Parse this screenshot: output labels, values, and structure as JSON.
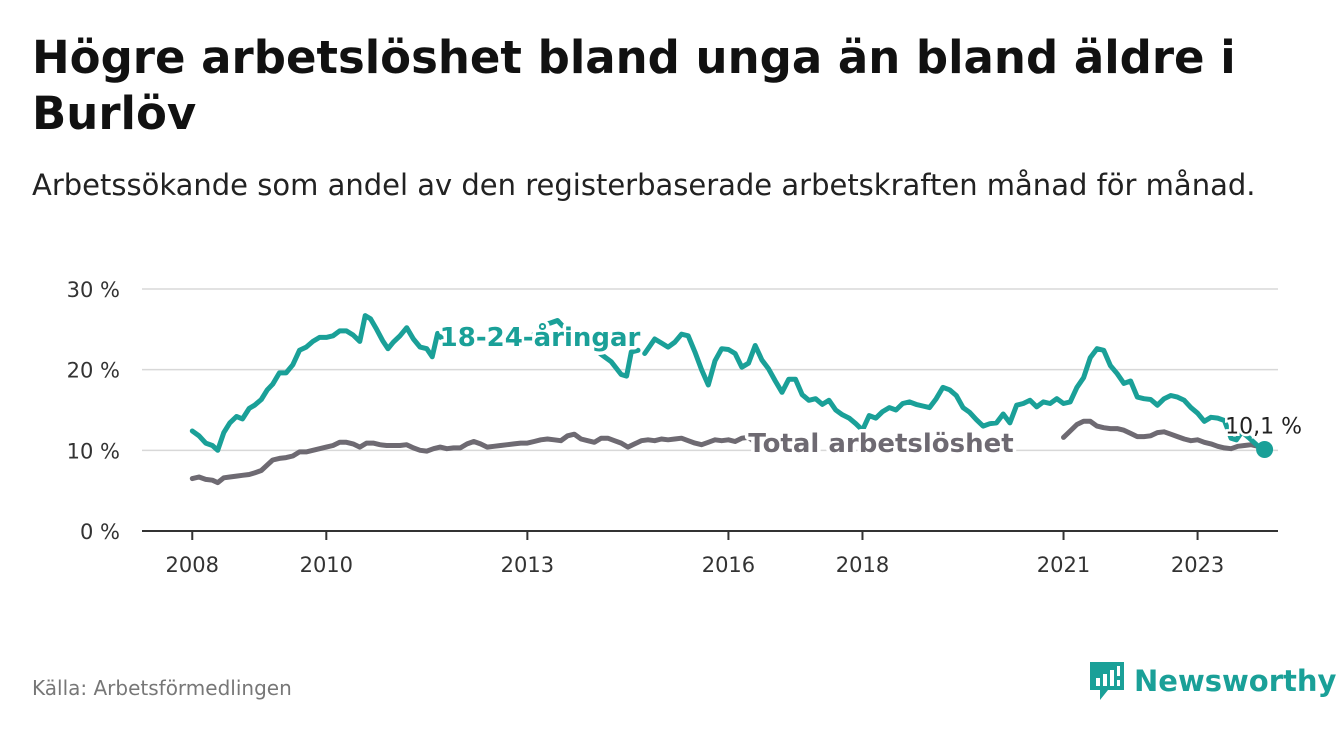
{
  "title": "Högre arbetslöshet bland unga än bland äldre i Burlöv",
  "subtitle": "Arbetssökande som andel av den registerbaserade arbetskraften månad för månad.",
  "source": "Källa: Arbetsförmedlingen",
  "brand": "Newsworthy",
  "colors": {
    "youth": "#1aa098",
    "total": "#6e6a72",
    "brand": "#1aa098",
    "grid": "#d8d8d8",
    "axis": "#333333"
  },
  "icons": {
    "brand": "bar-chart-logo-icon",
    "end_marker": "circle-marker-icon"
  },
  "chart_data": {
    "type": "line",
    "title": "Högre arbetslöshet bland unga än bland äldre i Burlöv",
    "ylabel": "",
    "xlabel": "",
    "ylim": [
      0,
      30
    ],
    "xlim": [
      2007.25,
      2024.2
    ],
    "yticks": [
      0,
      10,
      20,
      30
    ],
    "ytick_labels": [
      "0 %",
      "10 %",
      "20 %",
      "30 %"
    ],
    "xticks": [
      2008,
      2010,
      2013,
      2016,
      2018,
      2021,
      2023
    ],
    "xtick_labels": [
      "2008",
      "2010",
      "2013",
      "2016",
      "2018",
      "2021",
      "2023"
    ],
    "grid": true,
    "end_label": "10,1 %",
    "series": [
      {
        "name": "18-24-åringar",
        "label": "18-24-åringar",
        "points": [
          [
            2008.0,
            12.4
          ],
          [
            2008.1,
            11.8
          ],
          [
            2008.2,
            10.9
          ],
          [
            2008.3,
            10.6
          ],
          [
            2008.38,
            10.0
          ],
          [
            2008.47,
            12.2
          ],
          [
            2008.56,
            13.4
          ],
          [
            2008.66,
            14.2
          ],
          [
            2008.75,
            13.9
          ],
          [
            2008.85,
            15.2
          ],
          [
            2008.93,
            15.6
          ],
          [
            2009.03,
            16.3
          ],
          [
            2009.12,
            17.5
          ],
          [
            2009.2,
            18.2
          ],
          [
            2009.3,
            19.6
          ],
          [
            2009.4,
            19.6
          ],
          [
            2009.5,
            20.6
          ],
          [
            2009.6,
            22.4
          ],
          [
            2009.7,
            22.8
          ],
          [
            2009.8,
            23.5
          ],
          [
            2009.9,
            24.0
          ],
          [
            2010.0,
            24.0
          ],
          [
            2010.1,
            24.2
          ],
          [
            2010.2,
            24.8
          ],
          [
            2010.3,
            24.8
          ],
          [
            2010.4,
            24.3
          ],
          [
            2010.5,
            23.5
          ],
          [
            2010.58,
            26.7
          ],
          [
            2010.66,
            26.3
          ],
          [
            2010.75,
            25.0
          ],
          [
            2010.84,
            23.6
          ],
          [
            2010.92,
            22.6
          ],
          [
            2011.0,
            23.4
          ],
          [
            2011.1,
            24.2
          ],
          [
            2011.2,
            25.2
          ],
          [
            2011.3,
            23.8
          ],
          [
            2011.4,
            22.8
          ],
          [
            2011.5,
            22.6
          ],
          [
            2011.58,
            21.6
          ],
          [
            2011.66,
            24.5
          ],
          [
            2011.75,
            23.6
          ],
          [
            2011.85,
            24.2
          ]
        ],
        "points_b": [
          [
            2013.05,
            24.0
          ],
          [
            2013.15,
            24.8
          ],
          [
            2013.25,
            25.6
          ],
          [
            2013.35,
            25.8
          ],
          [
            2013.45,
            26.1
          ],
          [
            2013.55,
            25.2
          ],
          [
            2013.7,
            24.3
          ],
          [
            2013.85,
            23.6
          ],
          [
            2014.0,
            22.6
          ],
          [
            2014.1,
            21.9
          ],
          [
            2014.25,
            21.0
          ],
          [
            2014.4,
            19.4
          ],
          [
            2014.48,
            19.2
          ],
          [
            2014.55,
            22.2
          ],
          [
            2014.65,
            22.4
          ]
        ],
        "points_c": [
          [
            2014.75,
            22.0
          ],
          [
            2014.9,
            23.8
          ],
          [
            2015.0,
            23.3
          ],
          [
            2015.1,
            22.8
          ],
          [
            2015.2,
            23.4
          ],
          [
            2015.3,
            24.4
          ],
          [
            2015.4,
            24.2
          ],
          [
            2015.5,
            22.2
          ],
          [
            2015.6,
            20.0
          ],
          [
            2015.7,
            18.1
          ],
          [
            2015.8,
            21.1
          ],
          [
            2015.9,
            22.6
          ],
          [
            2016.0,
            22.5
          ],
          [
            2016.1,
            22.0
          ],
          [
            2016.2,
            20.3
          ],
          [
            2016.3,
            20.8
          ],
          [
            2016.4,
            23.0
          ],
          [
            2016.5,
            21.2
          ],
          [
            2016.6,
            20.1
          ],
          [
            2016.7,
            18.6
          ],
          [
            2016.8,
            17.2
          ],
          [
            2016.9,
            18.8
          ],
          [
            2017.0,
            18.8
          ],
          [
            2017.1,
            16.9
          ],
          [
            2017.2,
            16.2
          ],
          [
            2017.3,
            16.4
          ],
          [
            2017.4,
            15.7
          ],
          [
            2017.5,
            16.2
          ],
          [
            2017.6,
            15.0
          ],
          [
            2017.7,
            14.4
          ],
          [
            2017.8,
            14.0
          ],
          [
            2017.9,
            13.3
          ],
          [
            2018.0,
            12.5
          ],
          [
            2018.1,
            14.3
          ],
          [
            2018.2,
            14.0
          ],
          [
            2018.3,
            14.8
          ],
          [
            2018.4,
            15.3
          ],
          [
            2018.5,
            15.0
          ],
          [
            2018.6,
            15.8
          ],
          [
            2018.7,
            16.0
          ],
          [
            2018.8,
            15.7
          ],
          [
            2018.9,
            15.5
          ],
          [
            2019.0,
            15.3
          ],
          [
            2019.1,
            16.4
          ],
          [
            2019.2,
            17.8
          ],
          [
            2019.3,
            17.5
          ],
          [
            2019.4,
            16.8
          ],
          [
            2019.5,
            15.3
          ],
          [
            2019.6,
            14.7
          ],
          [
            2019.7,
            13.8
          ],
          [
            2019.8,
            13.0
          ],
          [
            2019.9,
            13.3
          ],
          [
            2020.0,
            13.4
          ],
          [
            2020.1,
            14.5
          ],
          [
            2020.2,
            13.4
          ],
          [
            2020.3,
            15.6
          ],
          [
            2020.4,
            15.8
          ],
          [
            2020.5,
            16.2
          ],
          [
            2020.6,
            15.4
          ],
          [
            2020.7,
            16.0
          ],
          [
            2020.8,
            15.8
          ],
          [
            2020.9,
            16.4
          ],
          [
            2021.0,
            15.8
          ],
          [
            2021.1,
            16.0
          ],
          [
            2021.2,
            17.8
          ],
          [
            2021.3,
            19.0
          ],
          [
            2021.4,
            21.5
          ],
          [
            2021.5,
            22.6
          ],
          [
            2021.6,
            22.4
          ],
          [
            2021.7,
            20.5
          ],
          [
            2021.8,
            19.5
          ],
          [
            2021.9,
            18.3
          ],
          [
            2022.0,
            18.6
          ],
          [
            2022.1,
            16.6
          ],
          [
            2022.2,
            16.4
          ],
          [
            2022.3,
            16.3
          ],
          [
            2022.4,
            15.6
          ],
          [
            2022.5,
            16.4
          ],
          [
            2022.6,
            16.8
          ],
          [
            2022.7,
            16.6
          ],
          [
            2022.8,
            16.2
          ],
          [
            2022.9,
            15.3
          ],
          [
            2023.0,
            14.6
          ],
          [
            2023.1,
            13.6
          ],
          [
            2023.2,
            14.1
          ],
          [
            2023.3,
            14.0
          ],
          [
            2023.4,
            13.7
          ],
          [
            2023.5,
            11.5
          ],
          [
            2023.58,
            11.3
          ],
          [
            2023.66,
            12.3
          ],
          [
            2023.76,
            11.6
          ],
          [
            2023.84,
            11.0
          ],
          [
            2023.92,
            10.4
          ],
          [
            2024.0,
            10.1
          ]
        ]
      },
      {
        "name": "Total arbetslöshet",
        "label": "Total arbetslöshet",
        "points": [
          [
            2008.0,
            6.5
          ],
          [
            2008.1,
            6.7
          ],
          [
            2008.2,
            6.4
          ],
          [
            2008.3,
            6.3
          ],
          [
            2008.38,
            6.0
          ],
          [
            2008.47,
            6.6
          ],
          [
            2008.56,
            6.7
          ],
          [
            2008.66,
            6.8
          ],
          [
            2008.75,
            6.9
          ],
          [
            2008.85,
            7.0
          ],
          [
            2008.93,
            7.2
          ],
          [
            2009.03,
            7.5
          ],
          [
            2009.12,
            8.2
          ],
          [
            2009.2,
            8.8
          ],
          [
            2009.3,
            9.0
          ],
          [
            2009.4,
            9.1
          ],
          [
            2009.5,
            9.3
          ],
          [
            2009.6,
            9.8
          ],
          [
            2009.7,
            9.8
          ],
          [
            2009.8,
            10.0
          ],
          [
            2009.9,
            10.2
          ],
          [
            2010.0,
            10.4
          ],
          [
            2010.1,
            10.6
          ],
          [
            2010.2,
            11.0
          ],
          [
            2010.3,
            11.0
          ],
          [
            2010.4,
            10.8
          ],
          [
            2010.5,
            10.4
          ],
          [
            2010.6,
            10.9
          ],
          [
            2010.7,
            10.9
          ],
          [
            2010.8,
            10.7
          ],
          [
            2010.9,
            10.6
          ],
          [
            2011.0,
            10.6
          ],
          [
            2011.1,
            10.6
          ],
          [
            2011.2,
            10.7
          ],
          [
            2011.3,
            10.3
          ],
          [
            2011.4,
            10.0
          ],
          [
            2011.5,
            9.9
          ],
          [
            2011.6,
            10.2
          ],
          [
            2011.7,
            10.4
          ],
          [
            2011.8,
            10.2
          ],
          [
            2011.9,
            10.3
          ],
          [
            2012.0,
            10.3
          ],
          [
            2012.1,
            10.8
          ],
          [
            2012.2,
            11.1
          ],
          [
            2012.3,
            10.8
          ],
          [
            2012.4,
            10.4
          ],
          [
            2012.5,
            10.5
          ],
          [
            2012.6,
            10.6
          ],
          [
            2012.7,
            10.7
          ],
          [
            2012.8,
            10.8
          ],
          [
            2012.9,
            10.9
          ],
          [
            2013.0,
            10.9
          ],
          [
            2013.1,
            11.1
          ],
          [
            2013.2,
            11.3
          ],
          [
            2013.3,
            11.4
          ],
          [
            2013.4,
            11.3
          ],
          [
            2013.5,
            11.2
          ],
          [
            2013.6,
            11.8
          ],
          [
            2013.7,
            12.0
          ],
          [
            2013.8,
            11.4
          ],
          [
            2013.9,
            11.2
          ],
          [
            2014.0,
            11.0
          ],
          [
            2014.1,
            11.5
          ],
          [
            2014.2,
            11.5
          ],
          [
            2014.3,
            11.2
          ],
          [
            2014.4,
            10.9
          ],
          [
            2014.5,
            10.4
          ],
          [
            2014.6,
            10.8
          ],
          [
            2014.7,
            11.2
          ],
          [
            2014.8,
            11.3
          ],
          [
            2014.9,
            11.2
          ],
          [
            2015.0,
            11.4
          ],
          [
            2015.1,
            11.3
          ],
          [
            2015.2,
            11.4
          ],
          [
            2015.3,
            11.5
          ],
          [
            2015.4,
            11.2
          ],
          [
            2015.5,
            10.9
          ],
          [
            2015.6,
            10.7
          ],
          [
            2015.7,
            11.0
          ],
          [
            2015.8,
            11.3
          ],
          [
            2015.9,
            11.2
          ],
          [
            2016.0,
            11.3
          ],
          [
            2016.1,
            11.1
          ],
          [
            2016.2,
            11.5
          ],
          [
            2016.3,
            11.6
          ],
          [
            2016.38,
            11.1
          ]
        ],
        "points_b": [
          [
            2021.0,
            11.6
          ],
          [
            2021.1,
            12.4
          ],
          [
            2021.2,
            13.2
          ],
          [
            2021.3,
            13.6
          ],
          [
            2021.4,
            13.6
          ],
          [
            2021.5,
            13.0
          ],
          [
            2021.6,
            12.8
          ],
          [
            2021.7,
            12.7
          ],
          [
            2021.8,
            12.7
          ],
          [
            2021.9,
            12.5
          ],
          [
            2022.0,
            12.1
          ],
          [
            2022.1,
            11.7
          ],
          [
            2022.2,
            11.7
          ],
          [
            2022.3,
            11.8
          ],
          [
            2022.4,
            12.2
          ],
          [
            2022.5,
            12.3
          ],
          [
            2022.6,
            12.0
          ],
          [
            2022.7,
            11.7
          ],
          [
            2022.8,
            11.4
          ],
          [
            2022.9,
            11.2
          ],
          [
            2023.0,
            11.3
          ],
          [
            2023.1,
            11.0
          ],
          [
            2023.2,
            10.8
          ],
          [
            2023.3,
            10.5
          ],
          [
            2023.4,
            10.3
          ],
          [
            2023.5,
            10.2
          ],
          [
            2023.6,
            10.5
          ],
          [
            2023.7,
            10.6
          ],
          [
            2023.8,
            10.7
          ],
          [
            2023.9,
            10.5
          ],
          [
            2024.0,
            10.2
          ]
        ]
      }
    ]
  }
}
